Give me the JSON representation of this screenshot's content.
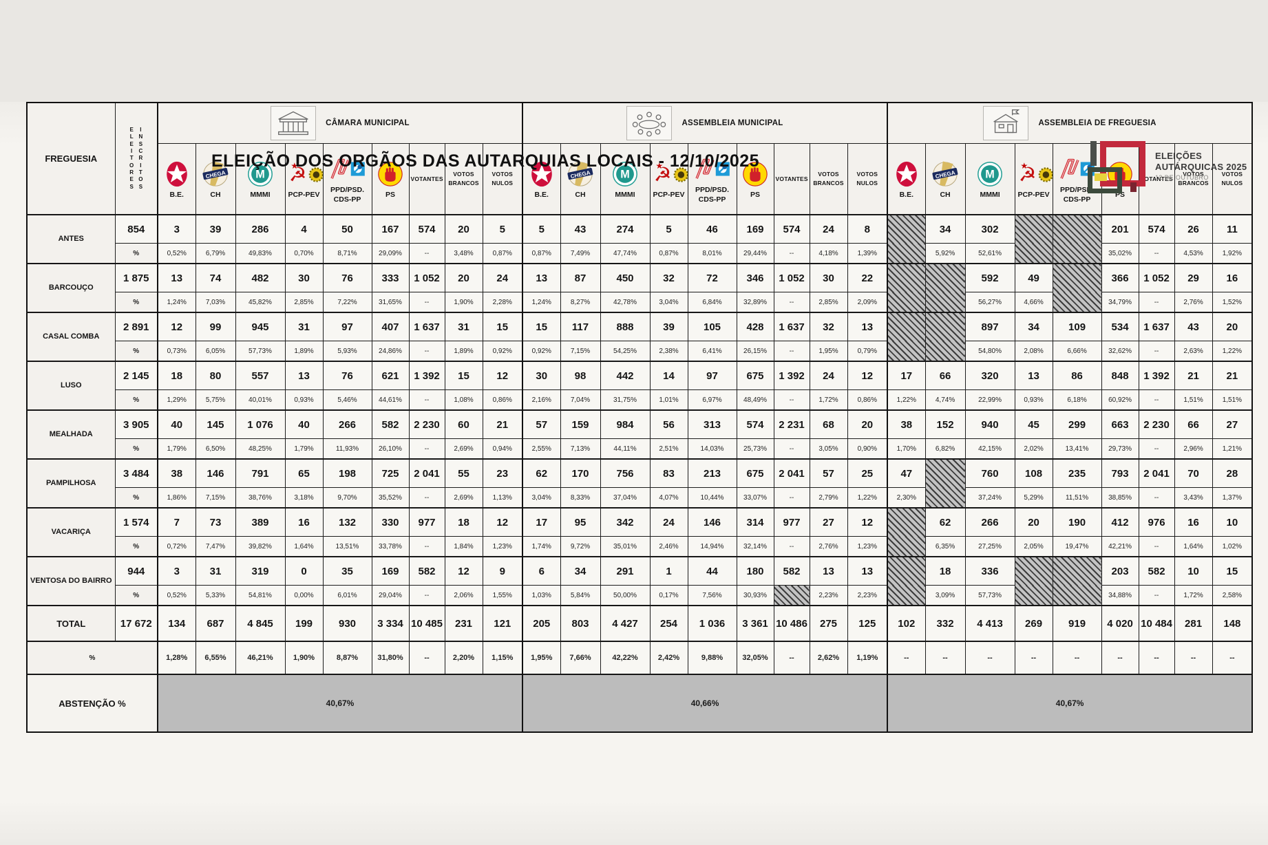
{
  "title": "ELEIÇÃO DOS ORGÃOS DAS AUTARQUIAS LOCAIS - 12/10/2025",
  "logo": {
    "line1": "ELEIÇÕES",
    "line2": "AUTÁRQUICAS 2025",
    "line3": "12 DE OUTUBRO"
  },
  "table": {
    "freguesia_header": "FREGUESIA",
    "eleitores_header": [
      "ELEITORES",
      "INSCRITOS"
    ],
    "sections": [
      {
        "title": "CÂMARA MUNICIPAL",
        "icon": "town-hall-icon"
      },
      {
        "title": "ASSEMBLEIA MUNICIPAL",
        "icon": "assembly-table-icon"
      },
      {
        "title": "ASSEMBLEIA DE FREGUESIA",
        "icon": "parish-house-icon"
      }
    ],
    "parties": [
      {
        "abbr": [
          "B.E."
        ],
        "icon": "be-logo"
      },
      {
        "abbr": [
          "CH"
        ],
        "icon": "chega-logo"
      },
      {
        "abbr": [
          "MMMI"
        ],
        "icon": "mmmi-logo"
      },
      {
        "abbr": [
          "PCP-PEV"
        ],
        "icon": "pcp-pev-logo"
      },
      {
        "abbr": [
          "PPD/PSD.",
          "CDS-PP"
        ],
        "icon": "ppd-psd-cds-logo"
      },
      {
        "abbr": [
          "PS"
        ],
        "icon": "ps-logo"
      }
    ],
    "other_cols": [
      [
        "VOTANTES"
      ],
      [
        "VOTOS",
        "BRANCOS"
      ],
      [
        "VOTOS",
        "NULOS"
      ]
    ],
    "pct_row_label": "%",
    "rows": [
      {
        "name": "ANTES",
        "eleitores": "854",
        "cm": [
          "3",
          "39",
          "286",
          "4",
          "50",
          "167",
          "574",
          "20",
          "5"
        ],
        "cm_pct": [
          "0,52%",
          "6,79%",
          "49,83%",
          "0,70%",
          "8,71%",
          "29,09%",
          "--",
          "3,48%",
          "0,87%"
        ],
        "am": [
          "5",
          "43",
          "274",
          "5",
          "46",
          "169",
          "574",
          "24",
          "8"
        ],
        "am_pct": [
          "0,87%",
          "7,49%",
          "47,74%",
          "0,87%",
          "8,01%",
          "29,44%",
          "--",
          "4,18%",
          "1,39%"
        ],
        "af": [
          null,
          "34",
          "302",
          null,
          null,
          "201",
          "574",
          "26",
          "11"
        ],
        "af_pct": [
          null,
          "5,92%",
          "52,61%",
          null,
          null,
          "35,02%",
          "--",
          "4,53%",
          "1,92%"
        ]
      },
      {
        "name": "BARCOUÇO",
        "eleitores": "1 875",
        "cm": [
          "13",
          "74",
          "482",
          "30",
          "76",
          "333",
          "1 052",
          "20",
          "24"
        ],
        "cm_pct": [
          "1,24%",
          "7,03%",
          "45,82%",
          "2,85%",
          "7,22%",
          "31,65%",
          "--",
          "1,90%",
          "2,28%"
        ],
        "am": [
          "13",
          "87",
          "450",
          "32",
          "72",
          "346",
          "1 052",
          "30",
          "22"
        ],
        "am_pct": [
          "1,24%",
          "8,27%",
          "42,78%",
          "3,04%",
          "6,84%",
          "32,89%",
          "--",
          "2,85%",
          "2,09%"
        ],
        "af": [
          null,
          null,
          "592",
          "49",
          null,
          "366",
          "1 052",
          "29",
          "16"
        ],
        "af_pct": [
          null,
          null,
          "56,27%",
          "4,66%",
          null,
          "34,79%",
          "--",
          "2,76%",
          "1,52%"
        ]
      },
      {
        "name": "CASAL COMBA",
        "eleitores": "2 891",
        "cm": [
          "12",
          "99",
          "945",
          "31",
          "97",
          "407",
          "1 637",
          "31",
          "15"
        ],
        "cm_pct": [
          "0,73%",
          "6,05%",
          "57,73%",
          "1,89%",
          "5,93%",
          "24,86%",
          "--",
          "1,89%",
          "0,92%"
        ],
        "am": [
          "15",
          "117",
          "888",
          "39",
          "105",
          "428",
          "1 637",
          "32",
          "13"
        ],
        "am_pct": [
          "0,92%",
          "7,15%",
          "54,25%",
          "2,38%",
          "6,41%",
          "26,15%",
          "--",
          "1,95%",
          "0,79%"
        ],
        "af": [
          null,
          null,
          "897",
          "34",
          "109",
          "534",
          "1 637",
          "43",
          "20"
        ],
        "af_pct": [
          null,
          null,
          "54,80%",
          "2,08%",
          "6,66%",
          "32,62%",
          "--",
          "2,63%",
          "1,22%"
        ]
      },
      {
        "name": "LUSO",
        "eleitores": "2 145",
        "cm": [
          "18",
          "80",
          "557",
          "13",
          "76",
          "621",
          "1 392",
          "15",
          "12"
        ],
        "cm_pct": [
          "1,29%",
          "5,75%",
          "40,01%",
          "0,93%",
          "5,46%",
          "44,61%",
          "--",
          "1,08%",
          "0,86%"
        ],
        "am": [
          "30",
          "98",
          "442",
          "14",
          "97",
          "675",
          "1 392",
          "24",
          "12"
        ],
        "am_pct": [
          "2,16%",
          "7,04%",
          "31,75%",
          "1,01%",
          "6,97%",
          "48,49%",
          "--",
          "1,72%",
          "0,86%"
        ],
        "af": [
          "17",
          "66",
          "320",
          "13",
          "86",
          "848",
          "1 392",
          "21",
          "21"
        ],
        "af_pct": [
          "1,22%",
          "4,74%",
          "22,99%",
          "0,93%",
          "6,18%",
          "60,92%",
          "--",
          "1,51%",
          "1,51%"
        ]
      },
      {
        "name": "MEALHADA",
        "eleitores": "3 905",
        "cm": [
          "40",
          "145",
          "1 076",
          "40",
          "266",
          "582",
          "2 230",
          "60",
          "21"
        ],
        "cm_pct": [
          "1,79%",
          "6,50%",
          "48,25%",
          "1,79%",
          "11,93%",
          "26,10%",
          "--",
          "2,69%",
          "0,94%"
        ],
        "am": [
          "57",
          "159",
          "984",
          "56",
          "313",
          "574",
          "2 231",
          "68",
          "20"
        ],
        "am_pct": [
          "2,55%",
          "7,13%",
          "44,11%",
          "2,51%",
          "14,03%",
          "25,73%",
          "--",
          "3,05%",
          "0,90%"
        ],
        "af": [
          "38",
          "152",
          "940",
          "45",
          "299",
          "663",
          "2 230",
          "66",
          "27"
        ],
        "af_pct": [
          "1,70%",
          "6,82%",
          "42,15%",
          "2,02%",
          "13,41%",
          "29,73%",
          "--",
          "2,96%",
          "1,21%"
        ]
      },
      {
        "name": "PAMPILHOSA",
        "eleitores": "3 484",
        "cm": [
          "38",
          "146",
          "791",
          "65",
          "198",
          "725",
          "2 041",
          "55",
          "23"
        ],
        "cm_pct": [
          "1,86%",
          "7,15%",
          "38,76%",
          "3,18%",
          "9,70%",
          "35,52%",
          "--",
          "2,69%",
          "1,13%"
        ],
        "am": [
          "62",
          "170",
          "756",
          "83",
          "213",
          "675",
          "2 041",
          "57",
          "25"
        ],
        "am_pct": [
          "3,04%",
          "8,33%",
          "37,04%",
          "4,07%",
          "10,44%",
          "33,07%",
          "--",
          "2,79%",
          "1,22%"
        ],
        "af": [
          "47",
          null,
          "760",
          "108",
          "235",
          "793",
          "2 041",
          "70",
          "28"
        ],
        "af_pct": [
          "2,30%",
          null,
          "37,24%",
          "5,29%",
          "11,51%",
          "38,85%",
          "--",
          "3,43%",
          "1,37%"
        ]
      },
      {
        "name": "VACARIÇA",
        "eleitores": "1 574",
        "cm": [
          "7",
          "73",
          "389",
          "16",
          "132",
          "330",
          "977",
          "18",
          "12"
        ],
        "cm_pct": [
          "0,72%",
          "7,47%",
          "39,82%",
          "1,64%",
          "13,51%",
          "33,78%",
          "--",
          "1,84%",
          "1,23%"
        ],
        "am": [
          "17",
          "95",
          "342",
          "24",
          "146",
          "314",
          "977",
          "27",
          "12"
        ],
        "am_pct": [
          "1,74%",
          "9,72%",
          "35,01%",
          "2,46%",
          "14,94%",
          "32,14%",
          "--",
          "2,76%",
          "1,23%"
        ],
        "af": [
          null,
          "62",
          "266",
          "20",
          "190",
          "412",
          "976",
          "16",
          "10"
        ],
        "af_pct": [
          null,
          "6,35%",
          "27,25%",
          "2,05%",
          "19,47%",
          "42,21%",
          "--",
          "1,64%",
          "1,02%"
        ]
      },
      {
        "name": "VENTOSA DO BAIRRO",
        "eleitores": "944",
        "cm": [
          "3",
          "31",
          "319",
          "0",
          "35",
          "169",
          "582",
          "12",
          "9"
        ],
        "cm_pct": [
          "0,52%",
          "5,33%",
          "54,81%",
          "0,00%",
          "6,01%",
          "29,04%",
          "--",
          "2,06%",
          "1,55%"
        ],
        "am": [
          "6",
          "34",
          "291",
          "1",
          "44",
          "180",
          "582",
          "13",
          "13"
        ],
        "am_pct": [
          "1,03%",
          "5,84%",
          "50,00%",
          "0,17%",
          "7,56%",
          "30,93%",
          null,
          "2,23%",
          "2,23%"
        ],
        "af": [
          null,
          "18",
          "336",
          null,
          null,
          "203",
          "582",
          "10",
          "15"
        ],
        "af_pct": [
          null,
          "3,09%",
          "57,73%",
          null,
          null,
          "34,88%",
          "--",
          "1,72%",
          "2,58%"
        ]
      }
    ],
    "total": {
      "label": "TOTAL",
      "eleitores": "17 672",
      "cm": [
        "134",
        "687",
        "4 845",
        "199",
        "930",
        "3 334",
        "10 485",
        "231",
        "121"
      ],
      "am": [
        "205",
        "803",
        "4 427",
        "254",
        "1 036",
        "3 361",
        "10 486",
        "275",
        "125"
      ],
      "af": [
        "102",
        "332",
        "4 413",
        "269",
        "919",
        "4 020",
        "10 484",
        "281",
        "148"
      ]
    },
    "total_pct": {
      "label": "%",
      "cm": [
        "1,28%",
        "6,55%",
        "46,21%",
        "1,90%",
        "8,87%",
        "31,80%",
        "--",
        "2,20%",
        "1,15%"
      ],
      "am": [
        "1,95%",
        "7,66%",
        "42,22%",
        "2,42%",
        "9,88%",
        "32,05%",
        "--",
        "2,62%",
        "1,19%"
      ],
      "af": [
        "--",
        "--",
        "--",
        "--",
        "--",
        "--",
        "--",
        "--",
        "--"
      ]
    },
    "abstencao": {
      "label": "ABSTENÇÃO %",
      "values": [
        "40,67%",
        "40,66%",
        "40,67%"
      ]
    }
  }
}
